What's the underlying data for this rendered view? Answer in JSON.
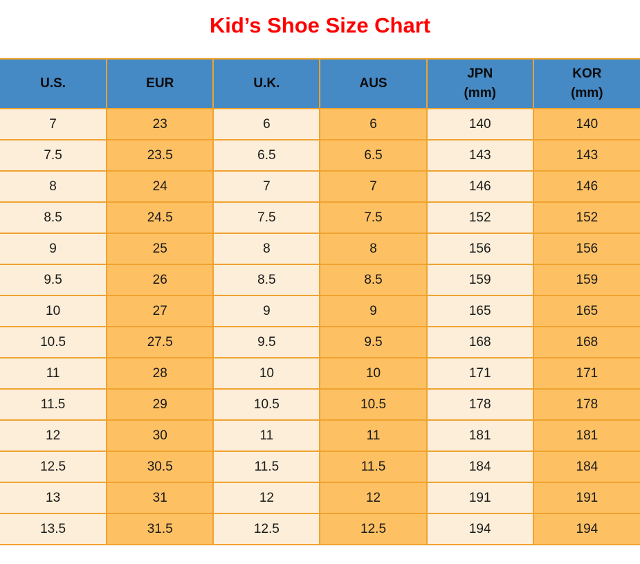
{
  "title": "Kid’s Shoe Size Chart",
  "colors": {
    "title_red": "#ff0000",
    "header_blue": "#4589c5",
    "cell_cream": "#fceed8",
    "cell_orange": "#fdc063",
    "border_orange": "#f0a330",
    "text_black": "#1a1a1a"
  },
  "chart_data": {
    "type": "table",
    "title": "Kid’s Shoe Size Chart",
    "columns": [
      "U.S.",
      "EUR",
      "U.K.",
      "AUS",
      "JPN (mm)",
      "KOR (mm)"
    ],
    "column_keys": [
      "us",
      "eur",
      "uk",
      "aus",
      "jpn-mm",
      "kor-mm"
    ],
    "header_lines": [
      [
        "U.S."
      ],
      [
        "EUR"
      ],
      [
        "U.K."
      ],
      [
        "AUS"
      ],
      [
        "JPN",
        "(mm)"
      ],
      [
        "KOR",
        "(mm)"
      ]
    ],
    "rows": [
      [
        "7",
        "23",
        "6",
        "6",
        "140",
        "140"
      ],
      [
        "7.5",
        "23.5",
        "6.5",
        "6.5",
        "143",
        "143"
      ],
      [
        "8",
        "24",
        "7",
        "7",
        "146",
        "146"
      ],
      [
        "8.5",
        "24.5",
        "7.5",
        "7.5",
        "152",
        "152"
      ],
      [
        "9",
        "25",
        "8",
        "8",
        "156",
        "156"
      ],
      [
        "9.5",
        "26",
        "8.5",
        "8.5",
        "159",
        "159"
      ],
      [
        "10",
        "27",
        "9",
        "9",
        "165",
        "165"
      ],
      [
        "10.5",
        "27.5",
        "9.5",
        "9.5",
        "168",
        "168"
      ],
      [
        "11",
        "28",
        "10",
        "10",
        "171",
        "171"
      ],
      [
        "11.5",
        "29",
        "10.5",
        "10.5",
        "178",
        "178"
      ],
      [
        "12",
        "30",
        "11",
        "11",
        "181",
        "181"
      ],
      [
        "12.5",
        "30.5",
        "11.5",
        "11.5",
        "184",
        "184"
      ],
      [
        "13",
        "31",
        "12",
        "12",
        "191",
        "191"
      ],
      [
        "13.5",
        "31.5",
        "12.5",
        "12.5",
        "194",
        "194"
      ]
    ]
  }
}
